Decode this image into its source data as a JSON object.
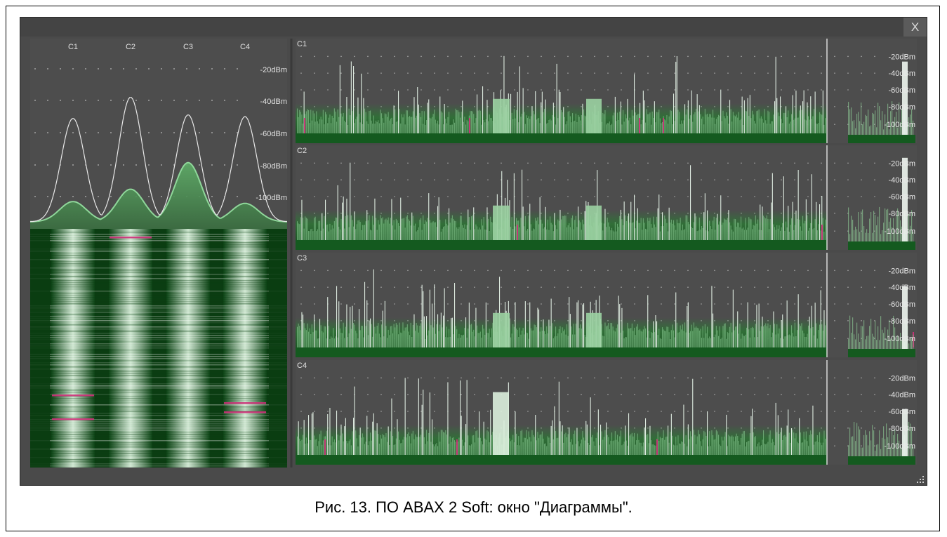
{
  "window": {
    "close_label": "X"
  },
  "overview": {
    "channels": [
      "C1",
      "C2",
      "C3",
      "C4"
    ],
    "levels": [
      "-20dBm",
      "-40dBm",
      "-60dBm",
      "-80dBm",
      "-100dBm"
    ],
    "peak_outline_dbm": [
      -48,
      -36,
      -46,
      -47
    ],
    "peak_fill_dbm": [
      -95,
      -88,
      -73,
      -96
    ]
  },
  "channel_panels": [
    {
      "label": "C1",
      "levels": [
        "-20dBm",
        "-40dBm",
        "-60dBm",
        "-80dBm",
        "-100dBm"
      ]
    },
    {
      "label": "C2",
      "levels": [
        "-20dBm",
        "-40dBm",
        "-60dBm",
        "-80dBm",
        "-100dBm"
      ]
    },
    {
      "label": "C3",
      "levels": [
        "-20dBm",
        "-40dBm",
        "-60dBm",
        "-80dBm",
        "-100dBm"
      ]
    },
    {
      "label": "C4",
      "levels": [
        "-20dBm",
        "-40dBm",
        "-60dBm",
        "-80dBm",
        "-100dBm"
      ]
    }
  ],
  "colors": {
    "window_bg": "#4a4a4a",
    "panel_bg": "#4d4d4d",
    "signal_green": "#2f8a3a",
    "signal_light": "#cfe8d2",
    "outline_white": "#e8e8e8",
    "alert_magenta": "#d0307a",
    "waterfall_dark": "#0b3d12"
  },
  "caption": "Рис. 13. ПО ABAX 2 Soft: окно \"Диаграммы\"."
}
